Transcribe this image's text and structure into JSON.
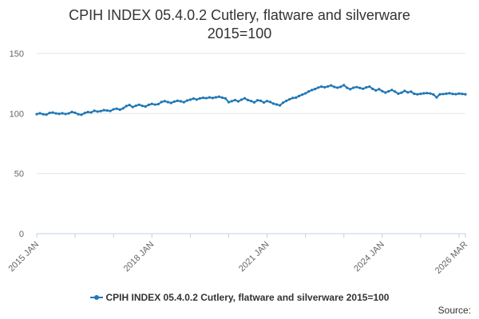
{
  "chart_data": {
    "type": "line",
    "title": "CPIH INDEX 05.4.0.2 Cutlery, flatware and silverware",
    "subtitle": "2015=100",
    "xlabel": "",
    "ylabel": "",
    "ylim": [
      0,
      150
    ],
    "y_ticks": [
      "0",
      "50",
      "100",
      "150"
    ],
    "x_ticks": [
      "2015 JAN",
      "2018 JAN",
      "2021 JAN",
      "2024 JAN",
      "2026 MAR"
    ],
    "grid": true,
    "legend_position": "bottom",
    "series": [
      {
        "name": "CPIH INDEX 05.4.0.2 Cutlery, flatware and silverware 2015=100",
        "color": "#1f77b4",
        "x_start": "2015 JAN",
        "x_end": "2026 MAR",
        "values": [
          99.5,
          100.2,
          99.4,
          99.1,
          100.5,
          100.8,
          100.1,
          99.7,
          100.2,
          99.6,
          100.1,
          101.3,
          100.6,
          99.4,
          99.0,
          100.4,
          101.2,
          100.9,
          102.3,
          101.6,
          102.0,
          102.8,
          102.5,
          102.1,
          103.5,
          104.0,
          103.2,
          104.3,
          106.2,
          107.1,
          105.4,
          106.5,
          107.3,
          106.4,
          105.8,
          107.2,
          108.0,
          107.4,
          107.8,
          109.6,
          110.3,
          109.5,
          108.8,
          109.9,
          110.6,
          110.2,
          109.4,
          110.8,
          111.5,
          112.4,
          111.6,
          112.6,
          113.1,
          112.8,
          113.4,
          112.9,
          113.5,
          114.0,
          113.2,
          112.6,
          109.4,
          110.3,
          111.2,
          110.1,
          111.5,
          112.7,
          111.2,
          110.4,
          109.3,
          111.0,
          110.6,
          109.2,
          110.4,
          109.6,
          108.2,
          107.5,
          106.8,
          109.0,
          110.5,
          111.8,
          112.9,
          113.2,
          114.6,
          115.7,
          116.8,
          118.3,
          119.5,
          120.4,
          121.6,
          122.4,
          121.8,
          122.5,
          123.4,
          122.1,
          121.5,
          122.2,
          123.6,
          121.4,
          120.2,
          121.5,
          122.0,
          121.3,
          120.6,
          121.7,
          122.4,
          120.5,
          119.2,
          120.3,
          118.6,
          117.4,
          118.5,
          119.6,
          118.2,
          116.5,
          117.3,
          118.8,
          117.6,
          118.2,
          116.4,
          116.0,
          116.4,
          116.8,
          117.0,
          116.7,
          115.8,
          113.4,
          116.0,
          116.2,
          116.5,
          116.9,
          116.3,
          116.1,
          116.6,
          116.3,
          116.0
        ]
      }
    ]
  },
  "legend": {
    "label": "CPIH INDEX 05.4.0.2 Cutlery, flatware and silverware 2015=100"
  },
  "footer": {
    "source_label": "Source:"
  }
}
